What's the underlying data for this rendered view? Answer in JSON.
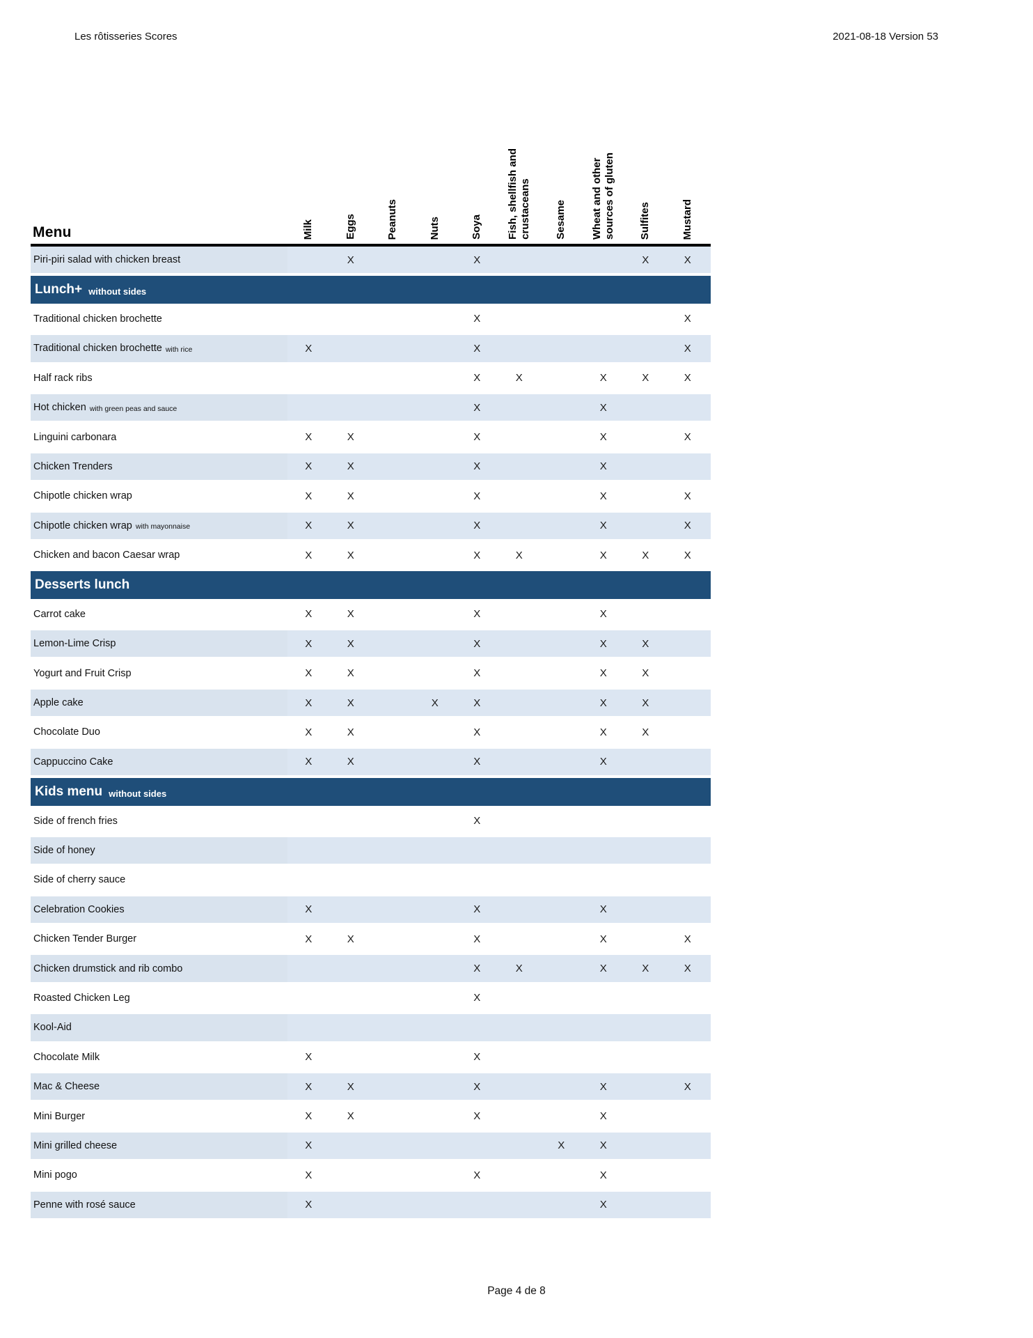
{
  "page_header": {
    "title": "Les rôtisseries Scores",
    "version": "2021-08-18 Version 53"
  },
  "table": {
    "menu_label": "Menu",
    "mark_glyph": "X",
    "columns": [
      "Milk",
      "Eggs",
      "Peanuts",
      "Nuts",
      "Soya",
      "Fish, shellfish and\ncrustaceans",
      "Sesame",
      "Wheat and other\nsources of gluten",
      "Sulfites",
      "Mustard"
    ],
    "rows": [
      {
        "type": "item",
        "shade": "blue",
        "name": "Piri-piri salad with chicken breast",
        "suffix": "",
        "marks": [
          0,
          1,
          0,
          0,
          1,
          0,
          0,
          0,
          1,
          1
        ]
      },
      {
        "type": "section",
        "name": "Lunch+",
        "suffix": "without sides"
      },
      {
        "type": "item",
        "shade": "white",
        "name": "Traditional chicken brochette",
        "suffix": "",
        "marks": [
          0,
          0,
          0,
          0,
          1,
          0,
          0,
          0,
          0,
          1
        ]
      },
      {
        "type": "item",
        "shade": "blue",
        "name": "Traditional chicken brochette",
        "suffix": "with rice",
        "marks": [
          1,
          0,
          0,
          0,
          1,
          0,
          0,
          0,
          0,
          1
        ]
      },
      {
        "type": "item",
        "shade": "white",
        "name": "Half rack ribs",
        "suffix": "",
        "marks": [
          0,
          0,
          0,
          0,
          1,
          1,
          0,
          1,
          1,
          1
        ]
      },
      {
        "type": "item",
        "shade": "blue",
        "name": "Hot chicken",
        "suffix": "with green peas and sauce",
        "marks": [
          0,
          0,
          0,
          0,
          1,
          0,
          0,
          1,
          0,
          0
        ]
      },
      {
        "type": "item",
        "shade": "white",
        "name": "Linguini carbonara",
        "suffix": "",
        "marks": [
          1,
          1,
          0,
          0,
          1,
          0,
          0,
          1,
          0,
          1
        ]
      },
      {
        "type": "item",
        "shade": "blue",
        "name": "Chicken Trenders",
        "suffix": "",
        "marks": [
          1,
          1,
          0,
          0,
          1,
          0,
          0,
          1,
          0,
          0
        ]
      },
      {
        "type": "item",
        "shade": "white",
        "name": "Chipotle chicken wrap",
        "suffix": "",
        "marks": [
          1,
          1,
          0,
          0,
          1,
          0,
          0,
          1,
          0,
          1
        ]
      },
      {
        "type": "item",
        "shade": "blue",
        "name": "Chipotle chicken wrap",
        "suffix": "with mayonnaise",
        "marks": [
          1,
          1,
          0,
          0,
          1,
          0,
          0,
          1,
          0,
          1
        ]
      },
      {
        "type": "item",
        "shade": "white",
        "name": "Chicken and bacon Caesar wrap",
        "suffix": "",
        "marks": [
          1,
          1,
          0,
          0,
          1,
          1,
          0,
          1,
          1,
          1
        ]
      },
      {
        "type": "section",
        "name": "Desserts lunch",
        "suffix": ""
      },
      {
        "type": "item",
        "shade": "white",
        "name": "Carrot cake",
        "suffix": "",
        "marks": [
          1,
          1,
          0,
          0,
          1,
          0,
          0,
          1,
          0,
          0
        ]
      },
      {
        "type": "item",
        "shade": "blue",
        "name": "Lemon-Lime Crisp",
        "suffix": "",
        "marks": [
          1,
          1,
          0,
          0,
          1,
          0,
          0,
          1,
          1,
          0
        ]
      },
      {
        "type": "item",
        "shade": "white",
        "name": "Yogurt and Fruit Crisp",
        "suffix": "",
        "marks": [
          1,
          1,
          0,
          0,
          1,
          0,
          0,
          1,
          1,
          0
        ]
      },
      {
        "type": "item",
        "shade": "blue",
        "name": "Apple cake",
        "suffix": "",
        "marks": [
          1,
          1,
          0,
          1,
          1,
          0,
          0,
          1,
          1,
          0
        ]
      },
      {
        "type": "item",
        "shade": "white",
        "name": "Chocolate Duo",
        "suffix": "",
        "marks": [
          1,
          1,
          0,
          0,
          1,
          0,
          0,
          1,
          1,
          0
        ]
      },
      {
        "type": "item",
        "shade": "blue",
        "name": "Cappuccino Cake",
        "suffix": "",
        "marks": [
          1,
          1,
          0,
          0,
          1,
          0,
          0,
          1,
          0,
          0
        ]
      },
      {
        "type": "section",
        "name": "Kids menu",
        "suffix": "without sides"
      },
      {
        "type": "item",
        "shade": "white",
        "name": "Side of french fries",
        "suffix": "",
        "marks": [
          0,
          0,
          0,
          0,
          1,
          0,
          0,
          0,
          0,
          0
        ]
      },
      {
        "type": "item",
        "shade": "blue",
        "name": "Side of honey",
        "suffix": "",
        "marks": [
          0,
          0,
          0,
          0,
          0,
          0,
          0,
          0,
          0,
          0
        ]
      },
      {
        "type": "item",
        "shade": "white",
        "name": "Side of cherry sauce",
        "suffix": "",
        "marks": [
          0,
          0,
          0,
          0,
          0,
          0,
          0,
          0,
          0,
          0
        ]
      },
      {
        "type": "item",
        "shade": "blue",
        "name": "Celebration Cookies",
        "suffix": "",
        "marks": [
          1,
          0,
          0,
          0,
          1,
          0,
          0,
          1,
          0,
          0
        ]
      },
      {
        "type": "item",
        "shade": "white",
        "name": "Chicken Tender Burger",
        "suffix": "",
        "marks": [
          1,
          1,
          0,
          0,
          1,
          0,
          0,
          1,
          0,
          1
        ]
      },
      {
        "type": "item",
        "shade": "blue",
        "name": "Chicken drumstick and rib combo",
        "suffix": "",
        "marks": [
          0,
          0,
          0,
          0,
          1,
          1,
          0,
          1,
          1,
          1
        ]
      },
      {
        "type": "item",
        "shade": "white",
        "name": "Roasted Chicken Leg",
        "suffix": "",
        "marks": [
          0,
          0,
          0,
          0,
          1,
          0,
          0,
          0,
          0,
          0
        ]
      },
      {
        "type": "item",
        "shade": "blue",
        "name": "Kool-Aid",
        "suffix": "",
        "marks": [
          0,
          0,
          0,
          0,
          0,
          0,
          0,
          0,
          0,
          0
        ]
      },
      {
        "type": "item",
        "shade": "white",
        "name": "Chocolate Milk",
        "suffix": "",
        "marks": [
          1,
          0,
          0,
          0,
          1,
          0,
          0,
          0,
          0,
          0
        ]
      },
      {
        "type": "item",
        "shade": "blue",
        "name": "Mac & Cheese",
        "suffix": "",
        "marks": [
          1,
          1,
          0,
          0,
          1,
          0,
          0,
          1,
          0,
          1
        ]
      },
      {
        "type": "item",
        "shade": "white",
        "name": "Mini Burger",
        "suffix": "",
        "marks": [
          1,
          1,
          0,
          0,
          1,
          0,
          0,
          1,
          0,
          0
        ]
      },
      {
        "type": "item",
        "shade": "blue",
        "name": "Mini grilled cheese",
        "suffix": "",
        "marks": [
          1,
          0,
          0,
          0,
          0,
          0,
          1,
          1,
          0,
          0
        ]
      },
      {
        "type": "item",
        "shade": "white",
        "name": "Mini pogo",
        "suffix": "",
        "marks": [
          1,
          0,
          0,
          0,
          1,
          0,
          0,
          1,
          0,
          0
        ]
      },
      {
        "type": "item",
        "shade": "blue",
        "name": "Penne with rosé sauce",
        "suffix": "",
        "marks": [
          1,
          0,
          0,
          0,
          0,
          0,
          0,
          1,
          0,
          0
        ]
      }
    ]
  },
  "footer": {
    "page": "Page 4 de 8"
  },
  "colors": {
    "section_bg": "#1f4e79",
    "row_blue": "#dce6f2",
    "row_blue_label": "#d9e3ee",
    "header_rule": "#000000"
  }
}
